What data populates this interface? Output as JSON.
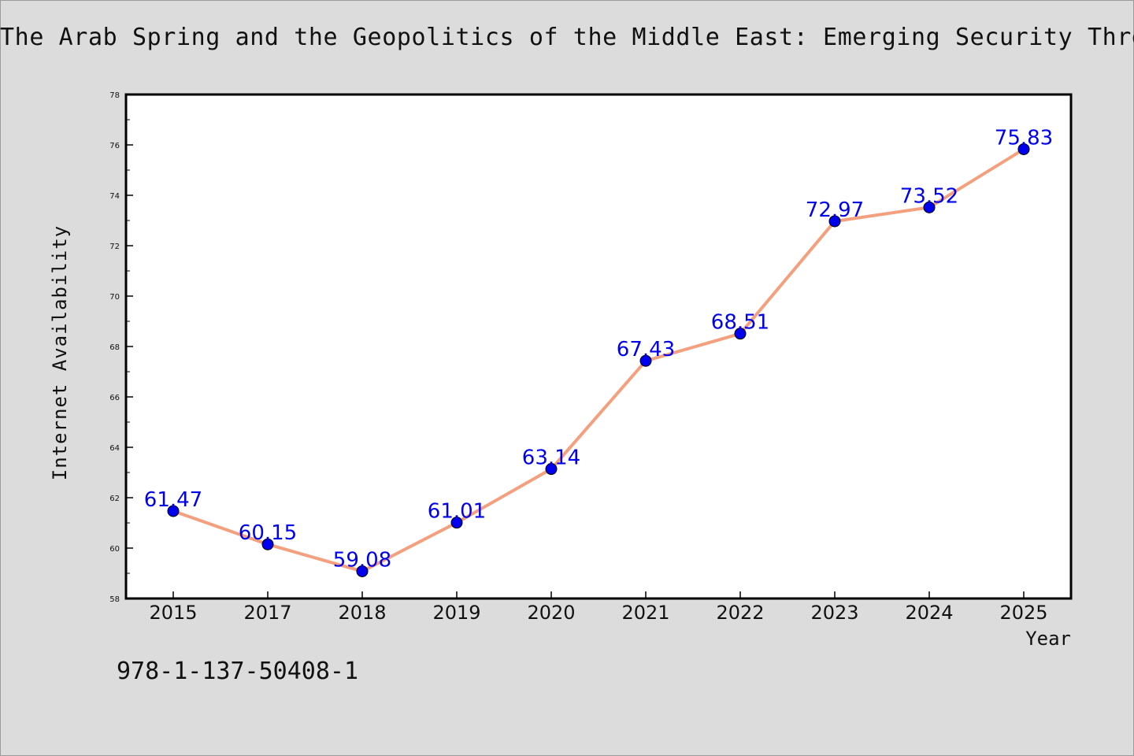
{
  "chart_data": {
    "type": "line",
    "title": "The Arab Spring and the Geopolitics of the Middle East: Emerging Security Threat",
    "xlabel": "Year",
    "ylabel": "Internet Availability",
    "categories": [
      "2015",
      "2017",
      "2018",
      "2019",
      "2020",
      "2021",
      "2022",
      "2023",
      "2024",
      "2025"
    ],
    "values": [
      61.47,
      60.15,
      59.08,
      61.01,
      63.14,
      67.43,
      68.51,
      72.97,
      73.52,
      75.83
    ],
    "data_labels": [
      "61.47",
      "60.15",
      "59.08",
      "61.01",
      "63.14",
      "67.43",
      "68.51",
      "72.97",
      "73.52",
      "75.83"
    ],
    "ylim": [
      58,
      78
    ],
    "y_ticks": [
      "58",
      "60",
      "62",
      "64",
      "66",
      "68",
      "70",
      "72",
      "74",
      "76",
      "78"
    ],
    "grid": false,
    "legend": "none",
    "colors": {
      "line": "#f4a07e",
      "marker": "#0000ee",
      "label": "#0000ee",
      "background": "#dcdcdc",
      "plot_background": "#ffffff"
    }
  },
  "footer": {
    "id_text": "978-1-137-50408-1"
  }
}
